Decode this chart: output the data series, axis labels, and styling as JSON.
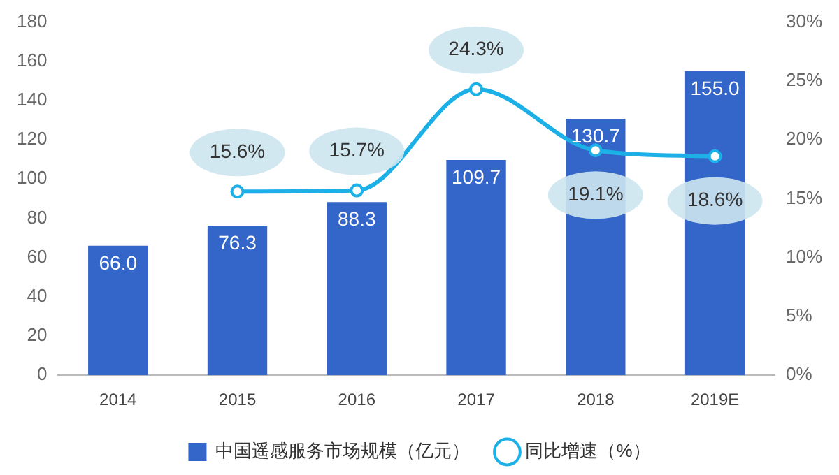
{
  "chart_data": {
    "type": "bar",
    "categories": [
      "2014",
      "2015",
      "2016",
      "2017",
      "2018",
      "2019E"
    ],
    "series": [
      {
        "name": "中国遥感服务市场规模（亿元）",
        "color": "#3465c8",
        "values": [
          66.0,
          76.3,
          88.3,
          109.7,
          130.7,
          155.0
        ],
        "value_labels": [
          "66.0",
          "76.3",
          "88.3",
          "109.7",
          "130.7",
          "155.0"
        ]
      },
      {
        "name": "同比增速（%）",
        "type": "line",
        "axis": "y2",
        "color": "#1cb0e6",
        "marker": "circle",
        "values": [
          null,
          15.6,
          15.7,
          24.3,
          19.1,
          18.6
        ],
        "value_labels": [
          null,
          "15.6%",
          "15.7%",
          "24.3%",
          "19.1%",
          "18.6%"
        ]
      }
    ],
    "ylim": [
      0,
      180
    ],
    "yticks": [
      0,
      20,
      40,
      60,
      80,
      100,
      120,
      140,
      160,
      180
    ],
    "y2lim": [
      0,
      30
    ],
    "y2ticks": [
      {
        "value": 0,
        "label": "0%"
      },
      {
        "value": 5,
        "label": "5%"
      },
      {
        "value": 10,
        "label": "10%"
      },
      {
        "value": 15,
        "label": "15%"
      },
      {
        "value": 20,
        "label": "20%"
      },
      {
        "value": 25,
        "label": "25%"
      },
      {
        "value": 30,
        "label": "30%"
      }
    ],
    "grid": false,
    "legend": "bottom"
  }
}
